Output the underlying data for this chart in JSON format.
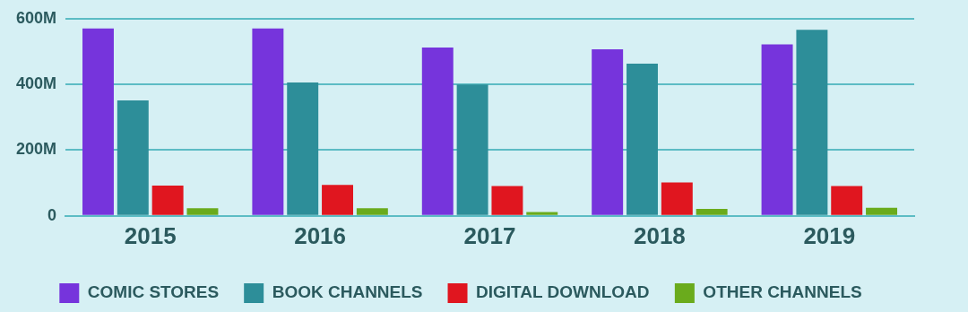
{
  "chart_data": {
    "type": "bar",
    "categories": [
      "2015",
      "2016",
      "2017",
      "2018",
      "2019"
    ],
    "series": [
      {
        "name": "COMIC STORES",
        "color": "#7634dc",
        "values": [
          570,
          570,
          512,
          507,
          522
        ]
      },
      {
        "name": "BOOK CHANNELS",
        "color": "#2d8e99",
        "values": [
          351,
          406,
          400,
          463,
          566
        ]
      },
      {
        "name": "DIGITAL DOWNLOAD",
        "color": "#e0161f",
        "values": [
          92,
          94,
          91,
          102,
          91
        ]
      },
      {
        "name": "OTHER CHANNELS",
        "color": "#6aab1c",
        "values": [
          23,
          23,
          12,
          21,
          25
        ]
      }
    ],
    "ylim": [
      0,
      600
    ],
    "yticks": [
      {
        "value": 0,
        "label": "0"
      },
      {
        "value": 200,
        "label": "200M"
      },
      {
        "value": 400,
        "label": "400M"
      },
      {
        "value": 600,
        "label": "600M"
      }
    ],
    "grid": "y",
    "legend": "bottom"
  }
}
